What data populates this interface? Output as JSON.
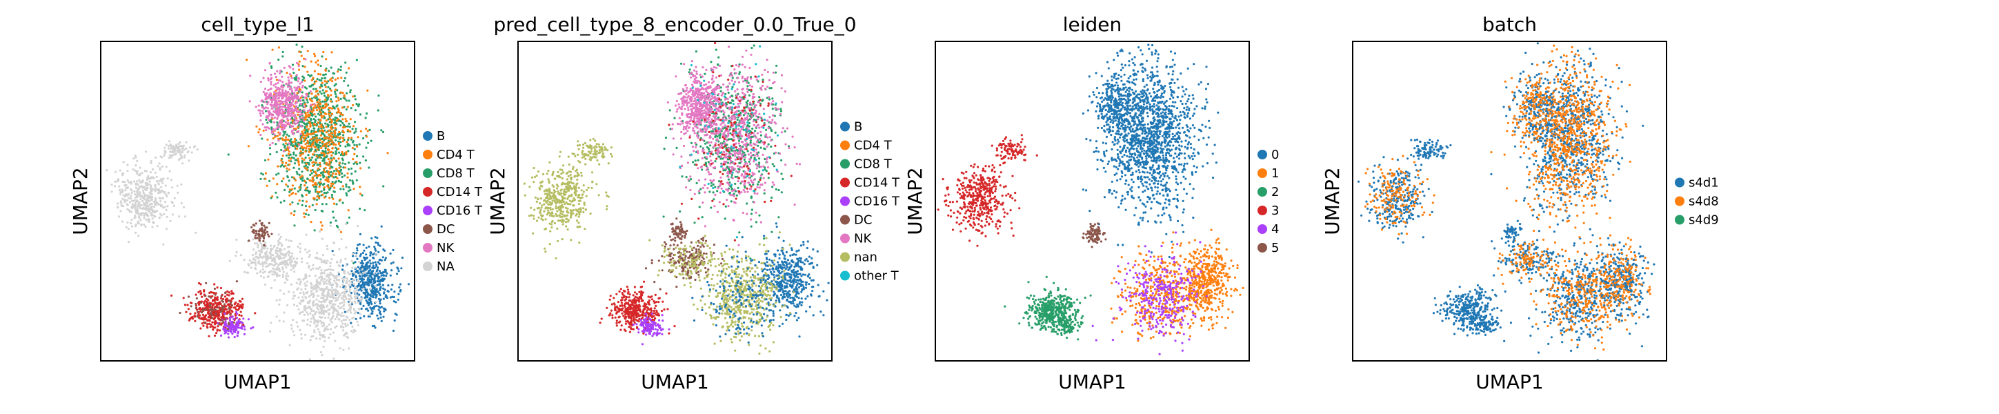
{
  "chart_data": [
    {
      "type": "scatter",
      "title": "cell_type_l1",
      "xlabel": "UMAP1",
      "ylabel": "UMAP2",
      "grid": false,
      "legend_position": "right",
      "series": [
        {
          "name": "B",
          "color": "#1f77b4"
        },
        {
          "name": "CD4 T",
          "color": "#ff7f0e"
        },
        {
          "name": "CD8 T",
          "color": "#279e68"
        },
        {
          "name": "CD14 T",
          "color": "#d62728"
        },
        {
          "name": "CD16 T",
          "color": "#aa40fc"
        },
        {
          "name": "DC",
          "color": "#8c564b"
        },
        {
          "name": "NK",
          "color": "#e377c2"
        },
        {
          "name": "NA",
          "color": "#d3d3d3"
        }
      ]
    },
    {
      "type": "scatter",
      "title": "pred_cell_type_8_encoder_0.0_True_0",
      "xlabel": "UMAP1",
      "ylabel": "UMAP2",
      "grid": false,
      "legend_position": "right",
      "series": [
        {
          "name": "B",
          "color": "#1f77b4"
        },
        {
          "name": "CD4 T",
          "color": "#ff7f0e"
        },
        {
          "name": "CD8 T",
          "color": "#279e68"
        },
        {
          "name": "CD14 T",
          "color": "#d62728"
        },
        {
          "name": "CD16 T",
          "color": "#aa40fc"
        },
        {
          "name": "DC",
          "color": "#8c564b"
        },
        {
          "name": "NK",
          "color": "#e377c2"
        },
        {
          "name": "nan",
          "color": "#b5bd61"
        },
        {
          "name": "other T",
          "color": "#17becf"
        }
      ]
    },
    {
      "type": "scatter",
      "title": "leiden",
      "xlabel": "UMAP1",
      "ylabel": "UMAP2",
      "grid": false,
      "legend_position": "right",
      "series": [
        {
          "name": "0",
          "color": "#1f77b4"
        },
        {
          "name": "1",
          "color": "#ff7f0e"
        },
        {
          "name": "2",
          "color": "#279e68"
        },
        {
          "name": "3",
          "color": "#d62728"
        },
        {
          "name": "4",
          "color": "#aa40fc"
        },
        {
          "name": "5",
          "color": "#8c564b"
        }
      ]
    },
    {
      "type": "scatter",
      "title": "batch",
      "xlabel": "UMAP1",
      "ylabel": "UMAP2",
      "grid": false,
      "legend_position": "right",
      "series": [
        {
          "name": "s4d1",
          "color": "#1f77b4"
        },
        {
          "name": "s4d8",
          "color": "#ff7f0e"
        },
        {
          "name": "s4d9",
          "color": "#279e68"
        }
      ]
    }
  ]
}
